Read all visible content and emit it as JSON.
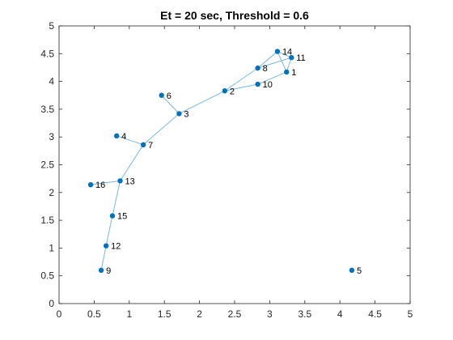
{
  "chart_data": {
    "type": "scatter",
    "title": "Et = 20 sec, Threshold = 0.6",
    "xlabel": "",
    "ylabel": "",
    "xlim": [
      0,
      5
    ],
    "ylim": [
      0,
      5
    ],
    "xticks": [
      "0",
      "0.5",
      "1",
      "1.5",
      "2",
      "2.5",
      "3",
      "3.5",
      "4",
      "4.5",
      "5"
    ],
    "yticks": [
      "0",
      "0.5",
      "1",
      "1.5",
      "2",
      "2.5",
      "3",
      "3.5",
      "4",
      "4.5",
      "5"
    ],
    "grid": false,
    "points": [
      {
        "label": "1",
        "x": 3.24,
        "y": 4.17
      },
      {
        "label": "2",
        "x": 2.36,
        "y": 3.83
      },
      {
        "label": "3",
        "x": 1.71,
        "y": 3.42
      },
      {
        "label": "4",
        "x": 0.82,
        "y": 3.02
      },
      {
        "label": "5",
        "x": 4.17,
        "y": 0.6
      },
      {
        "label": "6",
        "x": 1.46,
        "y": 3.75
      },
      {
        "label": "7",
        "x": 1.2,
        "y": 2.86
      },
      {
        "label": "8",
        "x": 2.83,
        "y": 4.24
      },
      {
        "label": "9",
        "x": 0.6,
        "y": 0.6
      },
      {
        "label": "10",
        "x": 2.83,
        "y": 3.95
      },
      {
        "label": "11",
        "x": 3.31,
        "y": 4.43
      },
      {
        "label": "12",
        "x": 0.67,
        "y": 1.04
      },
      {
        "label": "13",
        "x": 0.87,
        "y": 2.21
      },
      {
        "label": "14",
        "x": 3.11,
        "y": 4.54
      },
      {
        "label": "15",
        "x": 0.76,
        "y": 1.58
      },
      {
        "label": "16",
        "x": 0.45,
        "y": 2.14
      }
    ],
    "edges": [
      [
        "9",
        "12"
      ],
      [
        "12",
        "15"
      ],
      [
        "15",
        "13"
      ],
      [
        "13",
        "16"
      ],
      [
        "13",
        "7"
      ],
      [
        "7",
        "4"
      ],
      [
        "7",
        "3"
      ],
      [
        "3",
        "6"
      ],
      [
        "3",
        "2"
      ],
      [
        "2",
        "8"
      ],
      [
        "2",
        "10"
      ],
      [
        "8",
        "14"
      ],
      [
        "8",
        "11"
      ],
      [
        "10",
        "1"
      ],
      [
        "1",
        "11"
      ],
      [
        "1",
        "14"
      ],
      [
        "14",
        "11"
      ]
    ],
    "colors": {
      "marker": "#0072bd",
      "edge": "#7ab8dd",
      "axis": "#262626"
    }
  }
}
